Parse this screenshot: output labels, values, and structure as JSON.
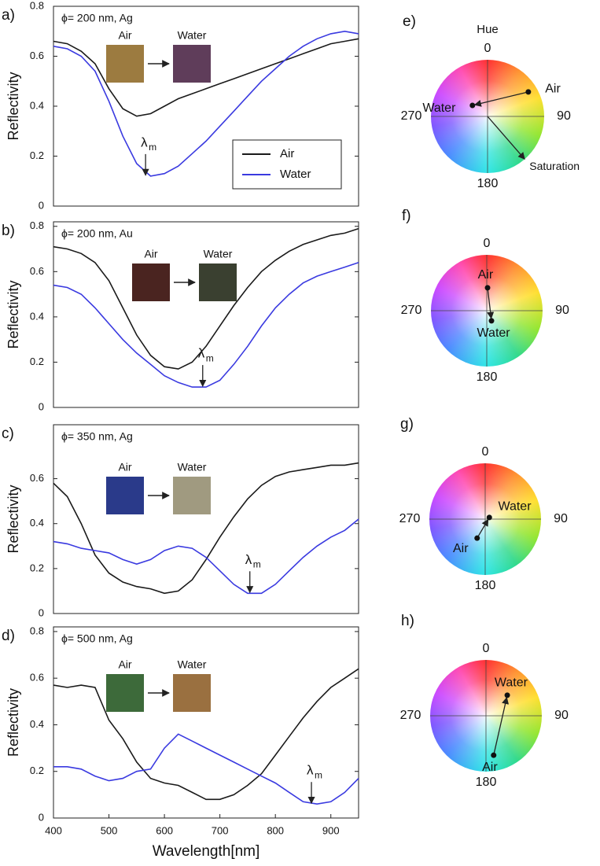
{
  "chart_data": [
    {
      "type": "line",
      "panel": "a)",
      "title": "ϕ= 200 nm, Ag",
      "ylabel": "Reflectivity",
      "x": [
        400,
        425,
        450,
        475,
        500,
        525,
        550,
        575,
        600,
        625,
        650,
        675,
        700,
        725,
        750,
        775,
        800,
        825,
        850,
        875,
        900,
        925,
        950
      ],
      "xlim": [
        400,
        950
      ],
      "ylim": [
        0,
        0.8
      ],
      "yticks": [
        0,
        0.2,
        0.4,
        0.6,
        0.8
      ],
      "legend": "lower right",
      "series": [
        {
          "name": "Air",
          "color": "#1a1a1a",
          "values": [
            0.66,
            0.65,
            0.62,
            0.57,
            0.47,
            0.39,
            0.36,
            0.37,
            0.4,
            0.43,
            0.45,
            0.47,
            0.49,
            0.51,
            0.53,
            0.55,
            0.57,
            0.59,
            0.61,
            0.63,
            0.65,
            0.66,
            0.67
          ]
        },
        {
          "name": "Water",
          "color": "#3a3ae0",
          "values": [
            0.64,
            0.63,
            0.6,
            0.54,
            0.42,
            0.28,
            0.17,
            0.12,
            0.13,
            0.16,
            0.21,
            0.26,
            0.32,
            0.38,
            0.44,
            0.5,
            0.55,
            0.6,
            0.64,
            0.67,
            0.69,
            0.7,
            0.69
          ]
        }
      ],
      "insets": [
        {
          "label": "Air",
          "color": "#9c7b40"
        },
        {
          "label": "Water",
          "color": "#5f3d5a"
        }
      ],
      "annotation": {
        "text": "λ",
        "subscript": "m",
        "x": 566,
        "y": 0.12
      }
    },
    {
      "type": "line",
      "panel": "b)",
      "title": "ϕ= 200 nm, Au",
      "ylabel": "Reflectivity",
      "x": [
        400,
        425,
        450,
        475,
        500,
        525,
        550,
        575,
        600,
        625,
        650,
        675,
        700,
        725,
        750,
        775,
        800,
        825,
        850,
        875,
        900,
        925,
        950
      ],
      "xlim": [
        400,
        950
      ],
      "ylim": [
        0,
        0.82
      ],
      "yticks": [
        0,
        0.2,
        0.4,
        0.6,
        0.8
      ],
      "series": [
        {
          "color": "#1a1a1a",
          "values": [
            0.71,
            0.7,
            0.68,
            0.64,
            0.56,
            0.44,
            0.32,
            0.23,
            0.18,
            0.17,
            0.2,
            0.27,
            0.36,
            0.45,
            0.53,
            0.6,
            0.65,
            0.69,
            0.72,
            0.74,
            0.76,
            0.77,
            0.79
          ]
        },
        {
          "color": "#3a3ae0",
          "values": [
            0.54,
            0.53,
            0.5,
            0.44,
            0.37,
            0.3,
            0.24,
            0.19,
            0.14,
            0.11,
            0.09,
            0.09,
            0.12,
            0.19,
            0.27,
            0.36,
            0.44,
            0.5,
            0.55,
            0.58,
            0.6,
            0.62,
            0.64
          ]
        }
      ],
      "insets": [
        {
          "label": "Air",
          "color": "#4a2420"
        },
        {
          "label": "Water",
          "color": "#3a4030"
        }
      ],
      "annotation": {
        "text": "λ",
        "subscript": "m",
        "x": 669,
        "y": 0.09
      }
    },
    {
      "type": "line",
      "panel": "c)",
      "title": "ϕ= 350 nm, Ag",
      "ylabel": "Reflectivity",
      "x": [
        400,
        425,
        450,
        475,
        500,
        525,
        550,
        575,
        600,
        625,
        650,
        675,
        700,
        725,
        750,
        775,
        800,
        825,
        850,
        875,
        900,
        925,
        950
      ],
      "xlim": [
        400,
        950
      ],
      "ylim": [
        0,
        0.84
      ],
      "yticks": [
        0,
        0.2,
        0.4,
        0.6
      ],
      "series": [
        {
          "color": "#1a1a1a",
          "values": [
            0.58,
            0.52,
            0.4,
            0.26,
            0.18,
            0.14,
            0.12,
            0.11,
            0.09,
            0.1,
            0.15,
            0.24,
            0.34,
            0.43,
            0.51,
            0.57,
            0.61,
            0.63,
            0.64,
            0.65,
            0.66,
            0.66,
            0.67
          ]
        },
        {
          "color": "#3a3ae0",
          "values": [
            0.32,
            0.31,
            0.29,
            0.28,
            0.27,
            0.24,
            0.22,
            0.24,
            0.28,
            0.3,
            0.29,
            0.25,
            0.19,
            0.13,
            0.09,
            0.09,
            0.13,
            0.19,
            0.25,
            0.3,
            0.34,
            0.37,
            0.42
          ]
        }
      ],
      "insets": [
        {
          "label": "Air",
          "color": "#2a3a8a"
        },
        {
          "label": "Water",
          "color": "#a09a80"
        }
      ],
      "annotation": {
        "text": "λ",
        "subscript": "m",
        "x": 754,
        "y": 0.09
      }
    },
    {
      "type": "line",
      "panel": "d)",
      "title": "ϕ= 500 nm, Ag",
      "ylabel": "Reflectivity",
      "xlabel": "Wavelength[nm]",
      "x": [
        400,
        425,
        450,
        475,
        500,
        525,
        550,
        575,
        600,
        625,
        650,
        675,
        700,
        725,
        750,
        775,
        800,
        825,
        850,
        875,
        900,
        925,
        950
      ],
      "xlim": [
        400,
        950
      ],
      "xticks": [
        400,
        500,
        600,
        700,
        800,
        900
      ],
      "ylim": [
        0,
        0.82
      ],
      "yticks": [
        0,
        0.2,
        0.4,
        0.6,
        0.8
      ],
      "series": [
        {
          "color": "#1a1a1a",
          "values": [
            0.57,
            0.56,
            0.57,
            0.56,
            0.42,
            0.34,
            0.24,
            0.17,
            0.15,
            0.14,
            0.11,
            0.08,
            0.08,
            0.1,
            0.14,
            0.19,
            0.27,
            0.35,
            0.43,
            0.5,
            0.56,
            0.6,
            0.64
          ]
        },
        {
          "color": "#3a3ae0",
          "values": [
            0.22,
            0.22,
            0.21,
            0.18,
            0.16,
            0.17,
            0.2,
            0.21,
            0.3,
            0.36,
            0.33,
            0.3,
            0.27,
            0.24,
            0.21,
            0.18,
            0.15,
            0.11,
            0.07,
            0.06,
            0.07,
            0.11,
            0.17
          ]
        }
      ],
      "insets": [
        {
          "label": "Air",
          "color": "#3d6a3a"
        },
        {
          "label": "Water",
          "color": "#9a7040"
        }
      ],
      "annotation": {
        "text": "λ",
        "subscript": "m",
        "x": 865,
        "y": 0.06
      }
    },
    {
      "type": "color-wheel",
      "panel": "e)",
      "title": "Hue",
      "angle_ticks": [
        0,
        90,
        180,
        270
      ],
      "saturation_label": "Saturation",
      "points": [
        {
          "name": "Air",
          "hue": 59,
          "saturation": 0.84
        },
        {
          "name": "Water",
          "hue": 306,
          "saturation": 0.33
        }
      ]
    },
    {
      "type": "color-wheel",
      "panel": "f)",
      "angle_ticks": [
        0,
        90,
        180,
        270
      ],
      "points": [
        {
          "name": "Air",
          "hue": 2,
          "saturation": 0.41
        },
        {
          "name": "Water",
          "hue": 155,
          "saturation": 0.2
        }
      ]
    },
    {
      "type": "color-wheel",
      "panel": "g)",
      "angle_ticks": [
        0,
        90,
        180,
        270
      ],
      "points": [
        {
          "name": "Air",
          "hue": 203,
          "saturation": 0.37
        },
        {
          "name": "Water",
          "hue": 68,
          "saturation": 0.08
        }
      ]
    },
    {
      "type": "color-wheel",
      "panel": "h)",
      "angle_ticks": [
        0,
        90,
        180,
        270
      ],
      "points": [
        {
          "name": "Air",
          "hue": 169,
          "saturation": 0.72
        },
        {
          "name": "Water",
          "hue": 46,
          "saturation": 0.53
        }
      ]
    }
  ]
}
